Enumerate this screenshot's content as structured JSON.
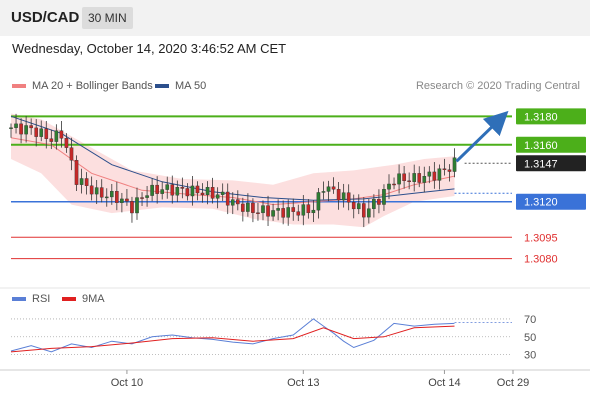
{
  "header": {
    "symbol": "USD/CAD",
    "interval": "30 MIN"
  },
  "datetime": "Wednesday, October 14, 2020 3:46:52 AM CET",
  "price_panel": {
    "legend": [
      {
        "label": "MA 20 + Bollinger Bands",
        "color": "#f08080"
      },
      {
        "label": "MA 50",
        "color": "#2c4f8c"
      }
    ],
    "credit": "Research © 2020 Trading Central"
  },
  "rsi_panel": {
    "legend": [
      {
        "label": "RSI",
        "color": "#5a7fd6"
      },
      {
        "label": "9MA",
        "color": "#e02020"
      }
    ]
  },
  "x_axis": {
    "labels": [
      "Oct 10",
      "Oct 13",
      "Oct 14",
      "Oct 29"
    ]
  },
  "chart_data": [
    {
      "type": "candlestick",
      "ylim": [
        1.3065,
        1.3195
      ],
      "levels": [
        {
          "label": "1.3180",
          "value": 1.318,
          "kind": "resistance",
          "color": "#4caf1a"
        },
        {
          "label": "1.3160",
          "value": 1.316,
          "kind": "resistance",
          "color": "#4caf1a"
        },
        {
          "label": "1.3147",
          "value": 1.3147,
          "kind": "last-price",
          "color": "#222222"
        },
        {
          "label": "1.3120",
          "value": 1.312,
          "kind": "pivot",
          "color": "#3a72d8"
        },
        {
          "label": "1.3095",
          "value": 1.3095,
          "kind": "support",
          "color": "#e03030"
        },
        {
          "label": "1.3080",
          "value": 1.308,
          "kind": "support",
          "color": "#e03030"
        }
      ],
      "price_path": [
        [
          0,
          1.3172
        ],
        [
          4,
          1.3171
        ],
        [
          8,
          1.3164
        ],
        [
          10,
          1.3168
        ],
        [
          13,
          1.3136
        ],
        [
          17,
          1.3126
        ],
        [
          21,
          1.3123
        ],
        [
          24,
          1.3116
        ],
        [
          27,
          1.3127
        ],
        [
          30,
          1.3129
        ],
        [
          34,
          1.3128
        ],
        [
          38,
          1.3127
        ],
        [
          42,
          1.3124
        ],
        [
          44,
          1.3119
        ],
        [
          48,
          1.3114
        ],
        [
          52,
          1.3113
        ],
        [
          56,
          1.3113
        ],
        [
          60,
          1.3115
        ],
        [
          62,
          1.3131
        ],
        [
          66,
          1.3123
        ],
        [
          70,
          1.3112
        ],
        [
          73,
          1.3122
        ],
        [
          76,
          1.3136
        ],
        [
          80,
          1.3136
        ],
        [
          84,
          1.3139
        ],
        [
          86,
          1.3142
        ],
        [
          88,
          1.3147
        ]
      ],
      "ma20": [
        [
          0,
          1.3165
        ],
        [
          8,
          1.316
        ],
        [
          16,
          1.314
        ],
        [
          26,
          1.3128
        ],
        [
          36,
          1.3125
        ],
        [
          44,
          1.3123
        ],
        [
          52,
          1.3118
        ],
        [
          60,
          1.312
        ],
        [
          68,
          1.3122
        ],
        [
          74,
          1.3125
        ],
        [
          80,
          1.3132
        ],
        [
          88,
          1.3138
        ]
      ],
      "bollinger_upper": [
        [
          0,
          1.3182
        ],
        [
          6,
          1.3178
        ],
        [
          10,
          1.317
        ],
        [
          16,
          1.3158
        ],
        [
          24,
          1.3142
        ],
        [
          34,
          1.3136
        ],
        [
          44,
          1.3135
        ],
        [
          52,
          1.3132
        ],
        [
          60,
          1.314
        ],
        [
          68,
          1.3142
        ],
        [
          76,
          1.3146
        ],
        [
          82,
          1.315
        ],
        [
          88,
          1.3152
        ]
      ],
      "bollinger_lower": [
        [
          0,
          1.315
        ],
        [
          6,
          1.314
        ],
        [
          12,
          1.3118
        ],
        [
          20,
          1.3112
        ],
        [
          30,
          1.3116
        ],
        [
          40,
          1.3115
        ],
        [
          48,
          1.3108
        ],
        [
          56,
          1.3104
        ],
        [
          64,
          1.3104
        ],
        [
          70,
          1.3102
        ],
        [
          74,
          1.311
        ],
        [
          80,
          1.312
        ],
        [
          88,
          1.3124
        ]
      ],
      "ma50": [
        [
          0,
          1.318
        ],
        [
          10,
          1.3168
        ],
        [
          20,
          1.3146
        ],
        [
          30,
          1.3134
        ],
        [
          40,
          1.3127
        ],
        [
          50,
          1.3123
        ],
        [
          60,
          1.3121
        ],
        [
          70,
          1.3122
        ],
        [
          80,
          1.3126
        ],
        [
          88,
          1.3129
        ]
      ],
      "projection": {
        "from": [
          88,
          1.3147
        ],
        "to": [
          97,
          1.3178
        ]
      }
    },
    {
      "type": "line",
      "ylim": [
        15,
        80
      ],
      "y_ticks": [
        30,
        50,
        70
      ],
      "series": [
        {
          "name": "RSI",
          "color": "#5a7fd6",
          "points": [
            [
              0,
              34
            ],
            [
              4,
              40
            ],
            [
              8,
              33
            ],
            [
              12,
              42
            ],
            [
              16,
              38
            ],
            [
              20,
              45
            ],
            [
              24,
              42
            ],
            [
              28,
              50
            ],
            [
              32,
              52
            ],
            [
              36,
              49
            ],
            [
              40,
              47
            ],
            [
              44,
              44
            ],
            [
              48,
              42
            ],
            [
              52,
              48
            ],
            [
              56,
              52
            ],
            [
              60,
              70
            ],
            [
              62,
              62
            ],
            [
              64,
              54
            ],
            [
              66,
              45
            ],
            [
              68,
              38
            ],
            [
              72,
              46
            ],
            [
              76,
              65
            ],
            [
              80,
              62
            ],
            [
              84,
              64
            ],
            [
              88,
              65
            ]
          ]
        },
        {
          "name": "9MA",
          "color": "#e02020",
          "points": [
            [
              0,
              33
            ],
            [
              8,
              37
            ],
            [
              16,
              39
            ],
            [
              24,
              43
            ],
            [
              32,
              48
            ],
            [
              40,
              49
            ],
            [
              48,
              45
            ],
            [
              56,
              48
            ],
            [
              62,
              60
            ],
            [
              68,
              48
            ],
            [
              74,
              50
            ],
            [
              80,
              60
            ],
            [
              88,
              62
            ]
          ]
        }
      ]
    }
  ]
}
